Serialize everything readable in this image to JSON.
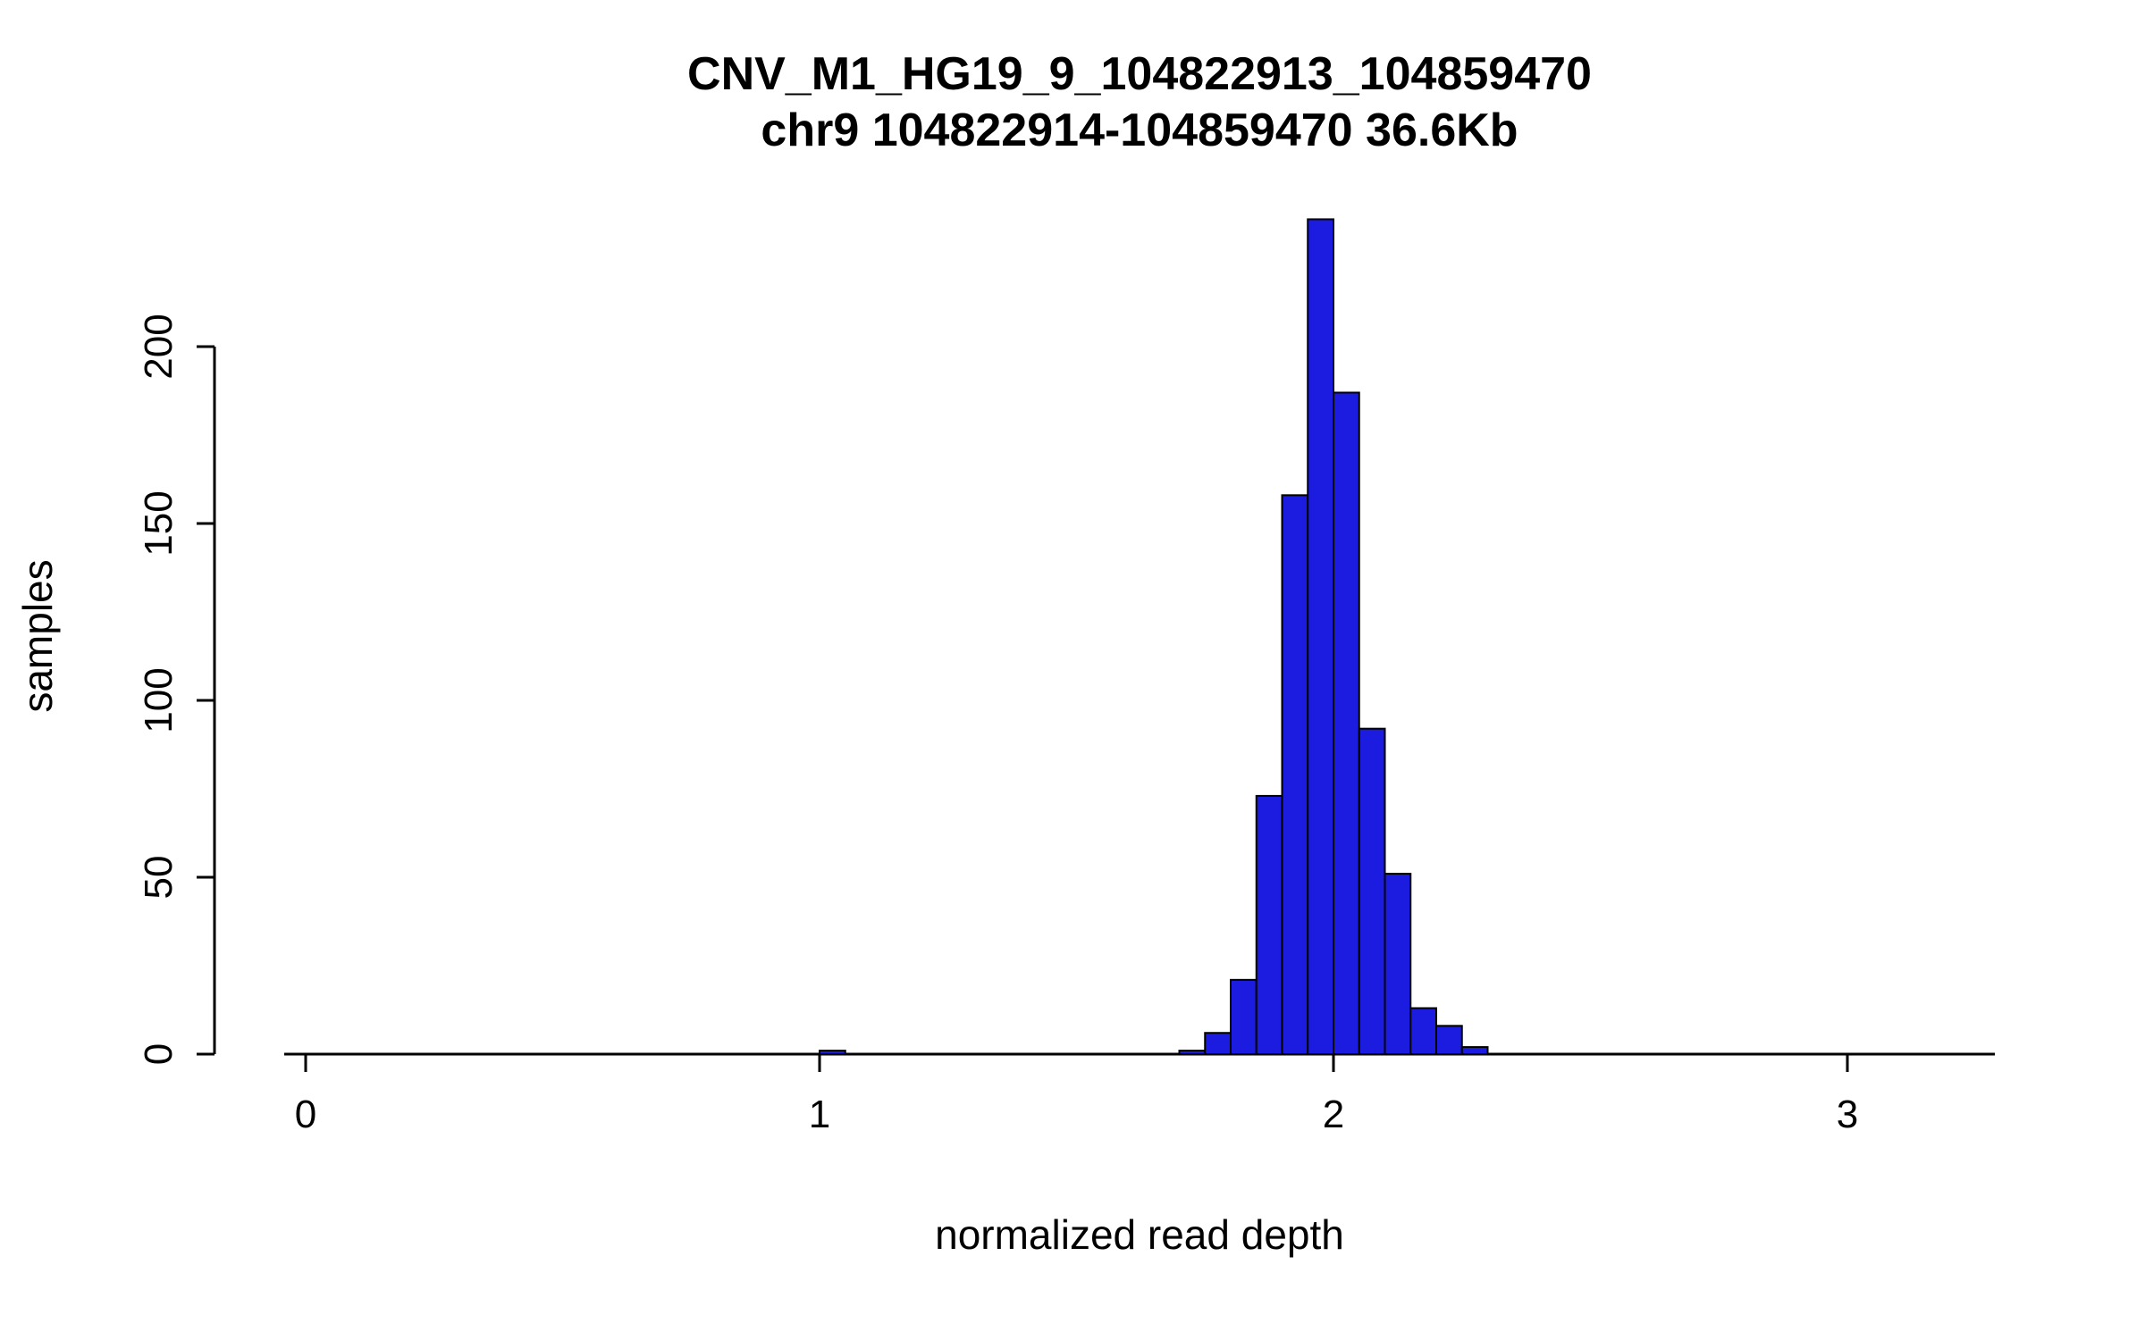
{
  "chart_data": {
    "type": "bar",
    "subtype": "histogram",
    "title": "CNV_M1_HG19_9_104822913_104859470",
    "subtitle": "chr9 104822914-104859470 36.6Kb",
    "xlabel": "normalized read depth",
    "ylabel": "samples",
    "x_ticks": [
      0,
      1,
      2,
      3
    ],
    "y_ticks": [
      0,
      50,
      100,
      150,
      200
    ],
    "xlim": [
      -0.04,
      3.29
    ],
    "ylim": [
      0,
      236
    ],
    "grid": "off",
    "legend": "none",
    "bin_width": 0.05,
    "bar_fill": "#1c1ce0",
    "bar_stroke": "#000000",
    "axis_color": "#000000",
    "background_color": "#ffffff",
    "bins": [
      {
        "bin_start": 1.0,
        "count": 1
      },
      {
        "bin_start": 1.7,
        "count": 1
      },
      {
        "bin_start": 1.75,
        "count": 6
      },
      {
        "bin_start": 1.8,
        "count": 21
      },
      {
        "bin_start": 1.85,
        "count": 73
      },
      {
        "bin_start": 1.9,
        "count": 158
      },
      {
        "bin_start": 1.95,
        "count": 236
      },
      {
        "bin_start": 2.0,
        "count": 187
      },
      {
        "bin_start": 2.05,
        "count": 92
      },
      {
        "bin_start": 2.1,
        "count": 51
      },
      {
        "bin_start": 2.15,
        "count": 13
      },
      {
        "bin_start": 2.2,
        "count": 8
      },
      {
        "bin_start": 2.25,
        "count": 2
      }
    ]
  }
}
